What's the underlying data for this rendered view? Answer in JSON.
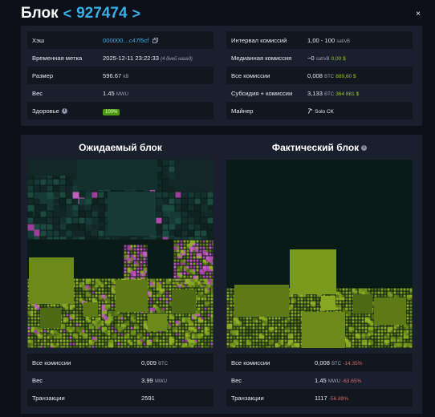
{
  "header": {
    "title": "Блок",
    "prev_chevron": "<",
    "block_number": "927474",
    "next_chevron": ">",
    "close_glyph": "×"
  },
  "details": {
    "left": [
      {
        "label": "Хэш",
        "value": "000000…c47f5cf",
        "icon": "copy-icon"
      },
      {
        "label": "Временная метка",
        "value": "2025-12-11 23:22:33",
        "note": "(4 дней назад)"
      },
      {
        "label": "Размер",
        "value": "596.67",
        "unit": "kB"
      },
      {
        "label": "Вес",
        "value": "1.45",
        "unit": "MWU"
      },
      {
        "label": "Здоровье",
        "badge": "100%"
      }
    ],
    "right": [
      {
        "label": "Интервал комиссий",
        "value": "1,00 - 100",
        "unit": "sat/vB"
      },
      {
        "label": "Медианная комиссия",
        "value": "~0",
        "unit": "sat/vB",
        "usd": "0,00 $"
      },
      {
        "label": "Все комиссии",
        "value": "0,008",
        "unit": "BTC",
        "usd": "889,60 $"
      },
      {
        "label": "Субсидия + комиссии",
        "value": "3,133",
        "unit": "BTC",
        "usd": "364 881 $"
      },
      {
        "label": "Майнер",
        "value": "Solo CK",
        "icon": "pickaxe-icon"
      }
    ]
  },
  "expected": {
    "title": "Ожидаемый блок",
    "stats": [
      {
        "label": "Все комиссии",
        "value": "0,009",
        "unit": "BTC"
      },
      {
        "label": "Вес",
        "value": "3.99",
        "unit": "MWU"
      },
      {
        "label": "Транзакции",
        "value": "2591"
      }
    ]
  },
  "actual": {
    "title": "Фактический блок",
    "stats": [
      {
        "label": "Все комиссии",
        "value": "0,008",
        "unit": "BTC",
        "diff": "-14.35%"
      },
      {
        "label": "Вес",
        "value": "1.45",
        "unit": "MWU",
        "diff": "-63.65%"
      },
      {
        "label": "Транзакции",
        "value": "1117",
        "diff": "-56.89%"
      }
    ]
  },
  "colors": {
    "accent": "#34b0e6",
    "positive": "#9acd1a",
    "negative": "#d9686a",
    "tx_green": "#7a9a1e",
    "tx_pink": "#b14bb0"
  }
}
